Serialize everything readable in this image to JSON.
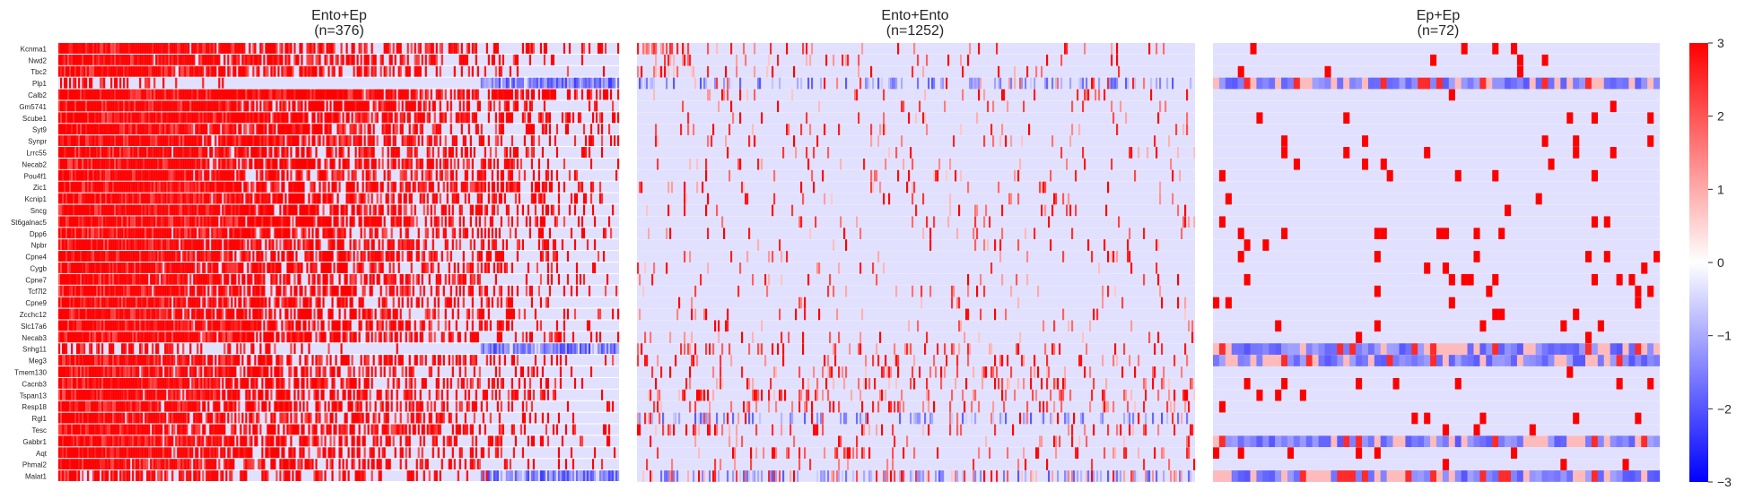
{
  "chart_data": [
    {
      "type": "heatmap",
      "title": "Ento+Ep",
      "subtitle": "(n=376)",
      "n": 376,
      "genes": [
        "Kcnma1",
        "Nwd2",
        "Tbc2",
        "Plp1",
        "Calb2",
        "Gm5741",
        "Scube1",
        "Syt9",
        "Synpr",
        "Lrrc55",
        "Necab2",
        "Pou4f1",
        "Zic1",
        "Kcnip1",
        "Sncg",
        "St6galnac5",
        "Dpp6",
        "Npbr",
        "Cpne4",
        "Cygb",
        "Cpne7",
        "Tcf7l2",
        "Cpne9",
        "Zcchc12",
        "Slc17a6",
        "Necab3",
        "Snhg11",
        "Meg3",
        "Tmem130",
        "Cacnb3",
        "Tspan13",
        "Resp18",
        "Rgl1",
        "Tesc",
        "Gabbr1",
        "Aqt",
        "Phmal2",
        "Malat1"
      ],
      "value_range": [
        -3,
        3
      ],
      "colormap": "bwr"
    },
    {
      "type": "heatmap",
      "title": "Ento+Ento",
      "subtitle": "(n=1252)",
      "n": 1252,
      "value_range": [
        -3,
        3
      ],
      "colormap": "bwr"
    },
    {
      "type": "heatmap",
      "title": "Ep+Ep",
      "subtitle": "(n=72)",
      "n": 72,
      "value_range": [
        -3,
        3
      ],
      "colormap": "bwr"
    }
  ],
  "colorbar": {
    "ticks": [
      3,
      2,
      1,
      0,
      -1,
      -2,
      -3
    ],
    "tick_labels": [
      "3",
      "2",
      "1",
      "0",
      "−1",
      "−2",
      "−3"
    ],
    "colors": {
      "low": "#0000ff",
      "mid": "#ffffff",
      "high": "#ff0000"
    }
  }
}
